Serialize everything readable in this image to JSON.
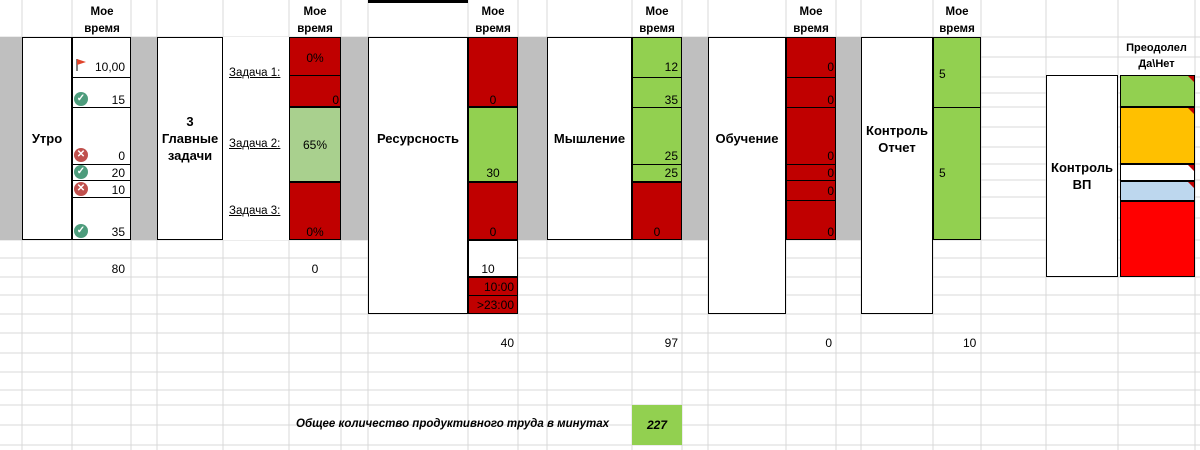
{
  "colors": {
    "red": "#c00000",
    "green": "#92d050",
    "light_green": "#a9d08e",
    "gray_band": "#bfbfbf",
    "orange": "#ffc000",
    "light_blue": "#bdd7ee",
    "bright_red": "#ff0000"
  },
  "header": {
    "my_time_line1": "Мое",
    "my_time_line2": "время"
  },
  "blocks": {
    "morning": "Утро",
    "main_tasks": "3 Главные задачи",
    "resources": "Ресурсность",
    "thinking": "Мышление",
    "learning": "Обучение",
    "control_report": "Контроль Отчет",
    "control_vp": "Контроль ВП"
  },
  "morning_times": {
    "r1": "10,00",
    "r2": "15",
    "r3": "0",
    "r4": "20",
    "r5": "10",
    "r6": "35",
    "total": "80"
  },
  "morning_icons": [
    "flag-icon",
    "check-icon",
    "cross-icon",
    "check-icon",
    "cross-icon",
    "check-icon"
  ],
  "tasks": {
    "t1": "Задача 1:",
    "t2": "Задача 2:",
    "t3": "Задача 3:"
  },
  "task_values": {
    "v1a": "0%",
    "v1b": "0",
    "v2": "65%",
    "v3": "0%",
    "total": "0"
  },
  "resources_values": {
    "v1": "0",
    "v2": "30",
    "v3": "0",
    "v4": "10",
    "v5": "10:00",
    "v6": ">23:00",
    "total": "40"
  },
  "thinking_values": {
    "v1": "12",
    "v2": "35",
    "v3": "25",
    "v4": "25",
    "v5": "0",
    "total": "97"
  },
  "learning_values": {
    "v1": "0",
    "v2": "0",
    "v3": "0",
    "v4": "0",
    "v5": "0",
    "v6": "0",
    "total": "0"
  },
  "control_values": {
    "v1": "5",
    "v2": "5",
    "total": "10"
  },
  "overcame": {
    "line1": "Преодолел",
    "line2": "Да\\Нет"
  },
  "footer": {
    "label": "Общее количество продуктивного труда в минутах",
    "value": "227"
  }
}
